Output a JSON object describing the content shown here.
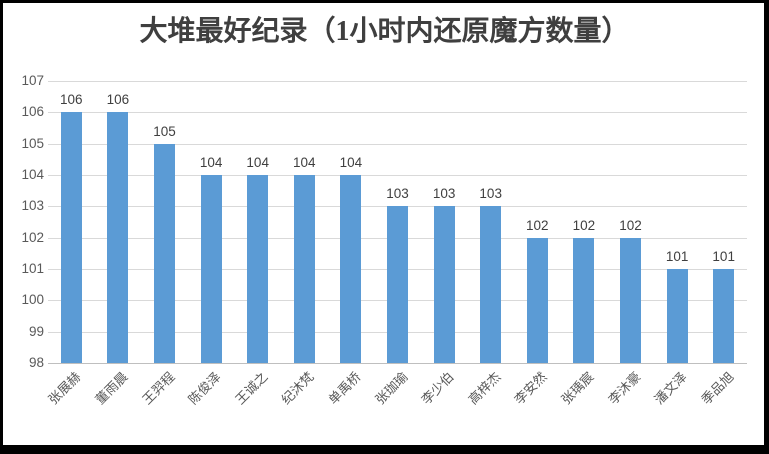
{
  "window": {
    "background_color": "#FFFFFF",
    "frame_color": "#000000"
  },
  "chart_data": {
    "type": "bar",
    "title": "大堆最好纪录（1小时内还原魔方数量）",
    "categories": [
      "张展赫",
      "董雨晨",
      "王羿程",
      "陈俊泽",
      "王诚之",
      "纪沐梵",
      "单禹桥",
      "张珈瑜",
      "李少伯",
      "高梓杰",
      "李安然",
      "张瑀宸",
      "李沐豪",
      "潘文泽",
      "季品旭"
    ],
    "values": [
      106,
      106,
      105,
      104,
      104,
      104,
      104,
      103,
      103,
      103,
      102,
      102,
      102,
      101,
      101
    ],
    "xlabel": "",
    "ylabel": "",
    "ylim": [
      98,
      107
    ],
    "yticks": [
      98,
      99,
      100,
      101,
      102,
      103,
      104,
      105,
      106,
      107
    ],
    "grid": true,
    "legend_position": "none",
    "show_data_labels": true,
    "category_label_rotation_deg": 45,
    "colors": {
      "bar": "#5B9BD5",
      "gridline": "#D9D9D9",
      "axis_line": "#BFBFBF",
      "title_text": "#3F3F3F",
      "value_label_text": "#3F3F3F",
      "axis_text": "#595959",
      "frame": "#000000",
      "background": "#FFFFFF"
    }
  }
}
